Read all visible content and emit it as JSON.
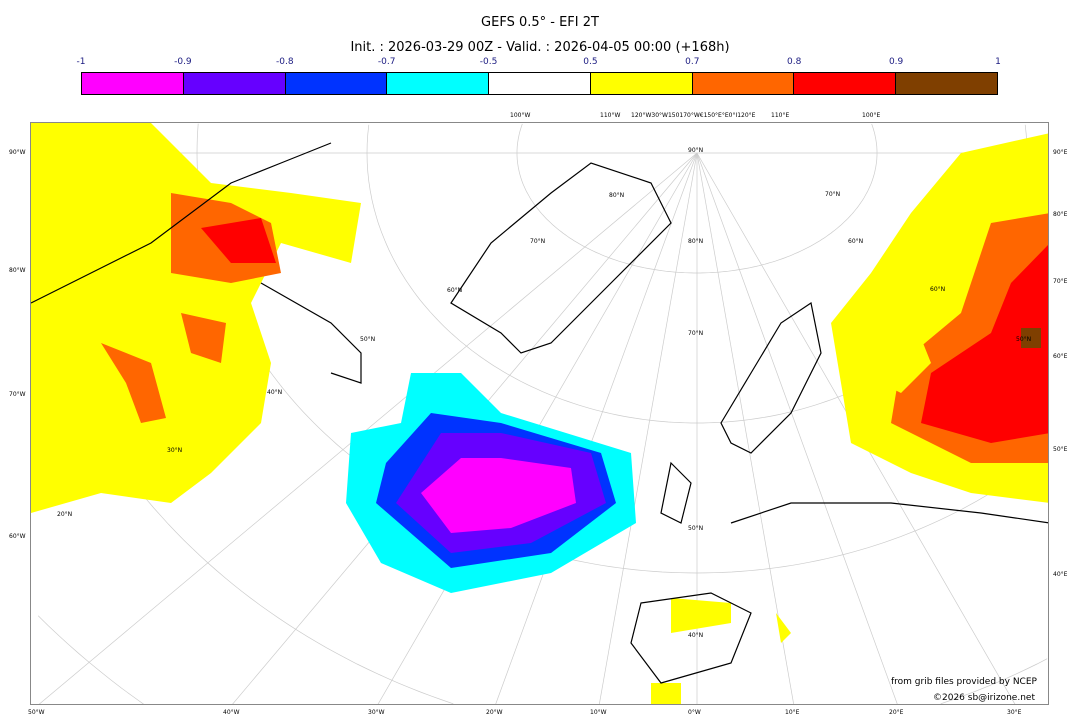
{
  "title": "GEFS 0.5° - EFI 2T",
  "subtitle": "Init. : 2026-03-29 00Z - Valid. : 2026-04-05 00:00 (+168h)",
  "colorbar": {
    "ticks": [
      "-1",
      "-0.9",
      "-0.8",
      "-0.7",
      "-0.5",
      "0.5",
      "0.7",
      "0.8",
      "0.9",
      "1"
    ],
    "colors": [
      "#ff00ff",
      "#6600ff",
      "#0033ff",
      "#00ffff",
      "#ffffff",
      "#ffff00",
      "#ff6600",
      "#ff0000",
      "#7f3f00"
    ]
  },
  "axes": {
    "left": [
      "90°W",
      "80°W",
      "70°W",
      "60°W"
    ],
    "right": [
      "90°E",
      "80°E",
      "70°E",
      "60°E",
      "50°E",
      "40°E"
    ],
    "bottom": [
      "50°W",
      "40°W",
      "30°W",
      "20°W",
      "10°W",
      "0°W",
      "10°E",
      "20°E",
      "30°E"
    ],
    "top": [
      "100°W",
      "110°W",
      "120°W30°W150170°W€150°E°E0°I120°E",
      "110°E",
      "100°E"
    ],
    "lat": [
      "90°N",
      "80°N",
      "80°N",
      "70°N",
      "70°N",
      "70°N",
      "60°N",
      "60°N",
      "60°N",
      "50°N",
      "50°N",
      "50°N",
      "40°N",
      "40°N",
      "30°N",
      "20°N"
    ]
  },
  "credits": {
    "line1": "from grib files provided by NCEP",
    "line2": "©2026 sb@irizone.net"
  }
}
